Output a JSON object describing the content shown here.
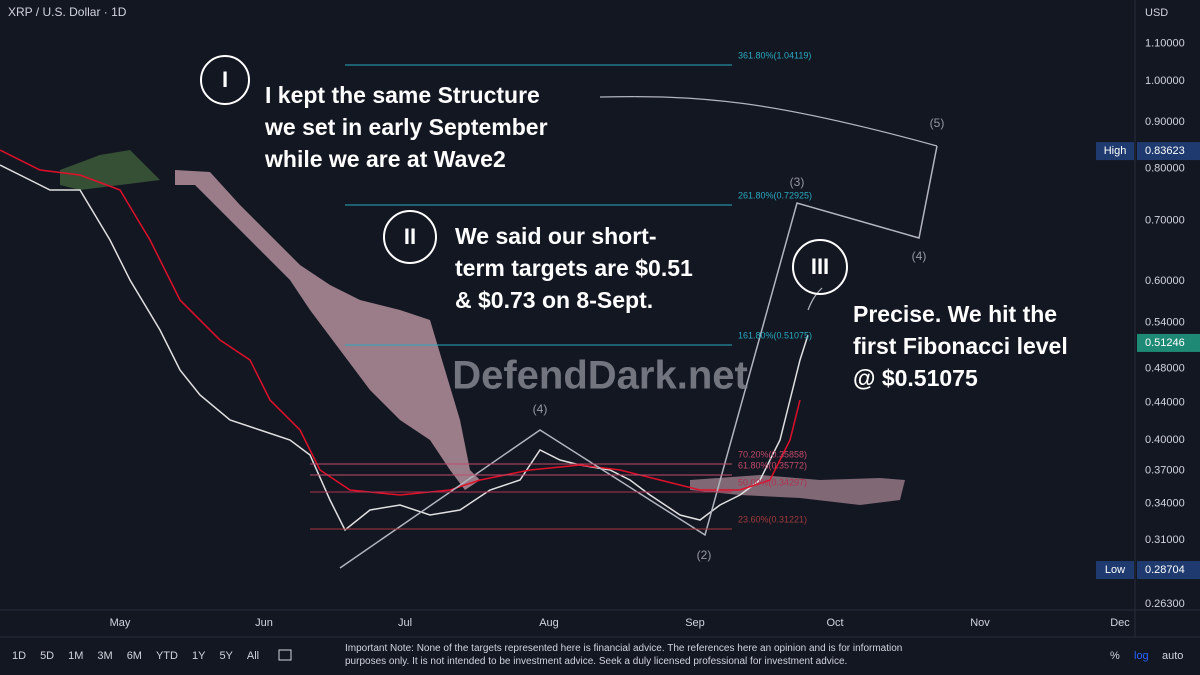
{
  "header": {
    "symbol": "XRP / U.S. Dollar · 1D",
    "currency": "USD"
  },
  "price_axis": {
    "ticks": [
      "1.10000",
      "1.00000",
      "0.90000",
      "0.80000",
      "0.70000",
      "0.60000",
      "0.54000",
      "0.48000",
      "0.44000",
      "0.40000",
      "0.37000",
      "0.34000",
      "0.31000",
      "0.26300"
    ],
    "high": {
      "label": "High",
      "value": "0.83623"
    },
    "last": "0.51246",
    "low": {
      "label": "Low",
      "value": "0.28704"
    }
  },
  "time_axis": [
    "May",
    "Jun",
    "Jul",
    "Aug",
    "Sep",
    "Oct",
    "Nov",
    "Dec"
  ],
  "fib_levels": [
    "361.80%(1.04119)",
    "261.80%(0.72925)",
    "161.80%(0.51075)",
    "70.20%(0.35858)",
    "61.80%(0.35772)",
    "50.00%(0.34297)",
    "23.60%(0.31221)"
  ],
  "annotations": {
    "I": {
      "marker": "I",
      "lines": [
        "I kept the same Structure",
        "we set in early September",
        "while we are at Wave2"
      ]
    },
    "II": {
      "marker": "II",
      "lines": [
        "We said our short-",
        "term targets are $0.51",
        "& $0.73 on 8-Sept."
      ]
    },
    "III": {
      "marker": "III",
      "lines": [
        "Precise. We hit the",
        "first Fibonacci level",
        "@ $0.51075"
      ]
    }
  },
  "waves": [
    "(5)",
    "(3)",
    "(4)",
    "(2)",
    "(4)"
  ],
  "watermark": "DefendDark.net",
  "toolbar": {
    "ranges": [
      "1D",
      "5D",
      "1M",
      "3M",
      "6M",
      "YTD",
      "1Y",
      "5Y",
      "All"
    ],
    "note": "Important Note: None of the targets represented here is financial advice. The references here an opinion and is for information purposes only. It is not intended to be investment advice. Seek a duly licensed professional for investment advice.",
    "options": [
      "%",
      "log",
      "auto"
    ]
  }
}
